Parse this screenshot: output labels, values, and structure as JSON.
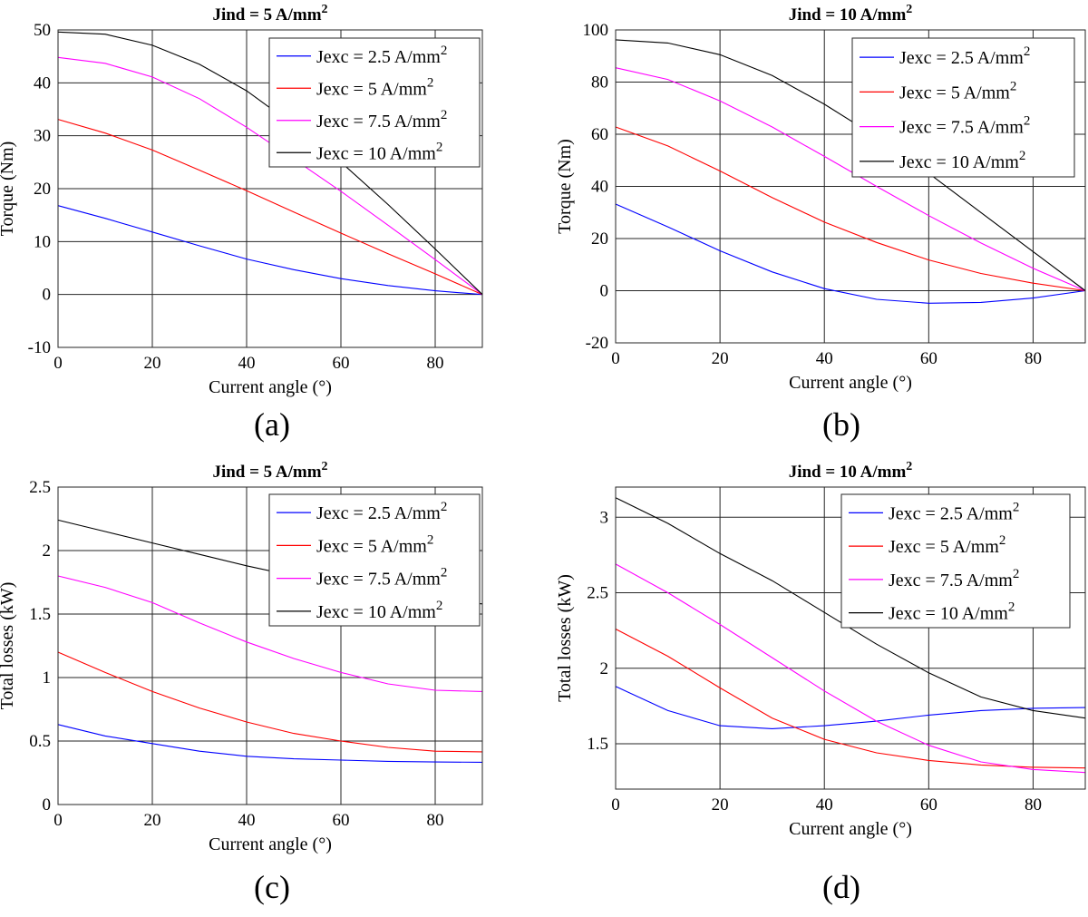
{
  "chart_data": [
    {
      "type": "line",
      "title": "Jind = 5 A/mm",
      "title_sup": "2",
      "caption": "(a)",
      "xlabel": "Current angle (°)",
      "ylabel": "Torque (Nm)",
      "xlim": [
        0,
        90
      ],
      "ylim": [
        -10,
        50
      ],
      "xticks": [
        0,
        20,
        40,
        60,
        80
      ],
      "yticks": [
        -10,
        0,
        10,
        20,
        30,
        40,
        50
      ],
      "grid": true,
      "legend": "top-right",
      "x": [
        0,
        10,
        20,
        30,
        40,
        50,
        60,
        70,
        80,
        90
      ],
      "series": [
        {
          "name": "Jexc = 2.5 A/mm",
          "name_sup": "2",
          "color": "#0000ff",
          "values": [
            16.8,
            14.4,
            11.8,
            9.2,
            6.7,
            4.7,
            3.0,
            1.7,
            0.7,
            0
          ]
        },
        {
          "name": "Jexc = 5 A/mm",
          "name_sup": "2",
          "color": "#ff0000",
          "values": [
            33.1,
            30.5,
            27.3,
            23.5,
            19.6,
            15.6,
            11.6,
            7.7,
            3.9,
            0
          ]
        },
        {
          "name": "Jexc = 7.5 A/mm",
          "name_sup": "2",
          "color": "#ff00ff",
          "values": [
            44.8,
            43.7,
            41.1,
            37.0,
            31.6,
            25.6,
            19.5,
            13.1,
            6.6,
            0
          ]
        },
        {
          "name": "Jexc = 10 A/mm",
          "name_sup": "2",
          "color": "#000000",
          "values": [
            49.6,
            49.2,
            47.1,
            43.5,
            38.5,
            32.0,
            25.0,
            17.0,
            8.6,
            0
          ]
        }
      ]
    },
    {
      "type": "line",
      "title": "Jind = 10 A/mm",
      "title_sup": "2",
      "caption": "(b)",
      "xlabel": "Current angle (°)",
      "ylabel": "Torque (Nm)",
      "xlim": [
        0,
        90
      ],
      "ylim": [
        -20,
        100
      ],
      "xticks": [
        0,
        20,
        40,
        60,
        80
      ],
      "yticks": [
        -20,
        0,
        20,
        40,
        60,
        80,
        100
      ],
      "grid": true,
      "legend": "top-right",
      "x": [
        0,
        10,
        20,
        30,
        40,
        50,
        60,
        70,
        80,
        90
      ],
      "series": [
        {
          "name": "Jexc = 2.5 A/mm",
          "name_sup": "2",
          "color": "#0000ff",
          "values": [
            33.2,
            24.5,
            15.3,
            7.2,
            0.8,
            -3.3,
            -4.8,
            -4.5,
            -2.8,
            0
          ]
        },
        {
          "name": "Jexc = 5 A/mm",
          "name_sup": "2",
          "color": "#ff0000",
          "values": [
            62.8,
            55.5,
            45.9,
            35.7,
            26.3,
            18.5,
            11.8,
            6.6,
            2.9,
            0
          ]
        },
        {
          "name": "Jexc = 7.5 A/mm",
          "name_sup": "2",
          "color": "#ff00ff",
          "values": [
            85.5,
            81.0,
            72.8,
            62.8,
            51.5,
            40.0,
            28.8,
            18.3,
            8.6,
            0
          ]
        },
        {
          "name": "Jexc = 10 A/mm",
          "name_sup": "2",
          "color": "#000000",
          "values": [
            96.2,
            95.0,
            90.5,
            82.5,
            71.5,
            59.0,
            45.0,
            30.0,
            15.0,
            0
          ]
        }
      ]
    },
    {
      "type": "line",
      "title": "Jind = 5 A/mm",
      "title_sup": "2",
      "caption": "(c)",
      "xlabel": "Current angle (°)",
      "ylabel": "Total losses (kW)",
      "xlim": [
        0,
        90
      ],
      "ylim": [
        0,
        2.5
      ],
      "xticks": [
        0,
        20,
        40,
        60,
        80
      ],
      "yticks": [
        0,
        0.5,
        1,
        1.5,
        2,
        2.5
      ],
      "grid": true,
      "legend": "top-right",
      "x": [
        0,
        10,
        20,
        30,
        40,
        50,
        60,
        70,
        80,
        90
      ],
      "series": [
        {
          "name": "Jexc = 2.5 A/mm",
          "name_sup": "2",
          "color": "#0000ff",
          "values": [
            0.63,
            0.54,
            0.48,
            0.42,
            0.38,
            0.36,
            0.35,
            0.34,
            0.335,
            0.333
          ]
        },
        {
          "name": "Jexc = 5 A/mm",
          "name_sup": "2",
          "color": "#ff0000",
          "values": [
            1.2,
            1.04,
            0.89,
            0.76,
            0.65,
            0.56,
            0.5,
            0.45,
            0.42,
            0.415
          ]
        },
        {
          "name": "Jexc = 7.5 A/mm",
          "name_sup": "2",
          "color": "#ff00ff",
          "values": [
            1.8,
            1.71,
            1.59,
            1.43,
            1.28,
            1.15,
            1.04,
            0.95,
            0.9,
            0.89
          ]
        },
        {
          "name": "Jexc = 10 A/mm",
          "name_sup": "2",
          "color": "#000000",
          "values": [
            2.24,
            2.15,
            2.06,
            1.97,
            1.88,
            1.8,
            1.73,
            1.66,
            1.61,
            1.58
          ]
        }
      ]
    },
    {
      "type": "line",
      "title": "Jind = 10 A/mm",
      "title_sup": "2",
      "caption": "(d)",
      "xlabel": "Current angle (°)",
      "ylabel": "Total losses (kW)",
      "xlim": [
        0,
        90
      ],
      "ylim": [
        1.2,
        3.2
      ],
      "xticks": [
        0,
        20,
        40,
        60,
        80
      ],
      "yticks": [
        1.5,
        2,
        2.5,
        3
      ],
      "grid": true,
      "legend": "top-right",
      "x": [
        0,
        10,
        20,
        30,
        40,
        50,
        60,
        70,
        80,
        90
      ],
      "series": [
        {
          "name": "Jexc = 2.5 A/mm",
          "name_sup": "2",
          "color": "#0000ff",
          "values": [
            1.88,
            1.72,
            1.62,
            1.6,
            1.62,
            1.65,
            1.69,
            1.72,
            1.735,
            1.74
          ]
        },
        {
          "name": "Jexc = 5 A/mm",
          "name_sup": "2",
          "color": "#ff0000",
          "values": [
            2.26,
            2.08,
            1.87,
            1.67,
            1.53,
            1.44,
            1.39,
            1.36,
            1.345,
            1.34
          ]
        },
        {
          "name": "Jexc = 7.5 A/mm",
          "name_sup": "2",
          "color": "#ff00ff",
          "values": [
            2.69,
            2.5,
            2.29,
            2.07,
            1.85,
            1.65,
            1.49,
            1.38,
            1.33,
            1.31
          ]
        },
        {
          "name": "Jexc = 10 A/mm",
          "name_sup": "2",
          "color": "#000000",
          "values": [
            3.13,
            2.96,
            2.76,
            2.58,
            2.37,
            2.16,
            1.97,
            1.81,
            1.72,
            1.67
          ]
        }
      ]
    }
  ]
}
